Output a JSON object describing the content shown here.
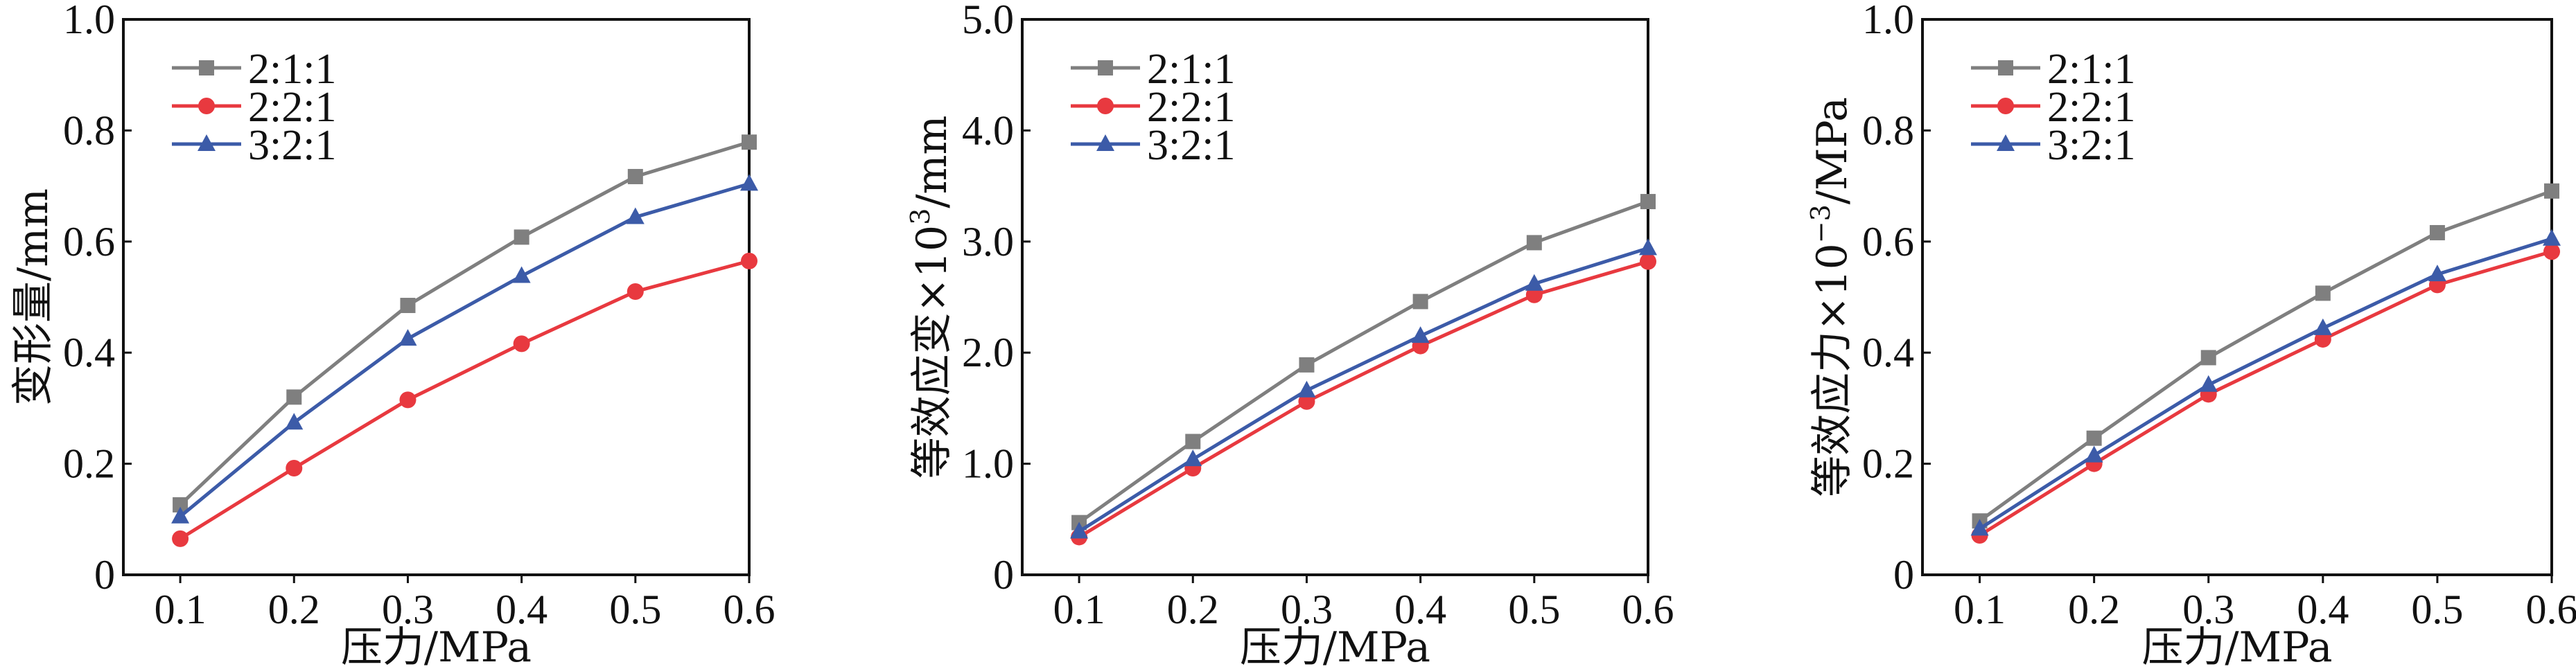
{
  "chart_data": [
    {
      "type": "line",
      "title": "",
      "xlabel": "压力/MPa",
      "ylabel": "变形量/mm",
      "ylabel_sup": "",
      "x": [
        0.1,
        0.2,
        0.3,
        0.4,
        0.5,
        0.6
      ],
      "xticks": [
        "0.1",
        "0.2",
        "0.3",
        "0.4",
        "0.5",
        "0.6"
      ],
      "xlim": [
        0.05,
        0.6
      ],
      "ylim": [
        0,
        1.0
      ],
      "yticks": [
        0,
        0.2,
        0.4,
        0.6,
        0.8,
        1.0
      ],
      "ytick_labels": [
        "0",
        "0.2",
        "0.4",
        "0.6",
        "0.8",
        "1.0"
      ],
      "grid": false,
      "legend_position": "top-left",
      "series": [
        {
          "name": "2:1:1",
          "color": "#7f7f7f",
          "marker": "square",
          "values": [
            0.126,
            0.32,
            0.485,
            0.608,
            0.717,
            0.779
          ]
        },
        {
          "name": "2:2:1",
          "color": "#e8393f",
          "marker": "circle",
          "values": [
            0.065,
            0.192,
            0.315,
            0.416,
            0.51,
            0.565
          ]
        },
        {
          "name": "3:2:1",
          "color": "#3c5ba8",
          "marker": "triangle",
          "values": [
            0.105,
            0.274,
            0.425,
            0.538,
            0.644,
            0.704
          ]
        }
      ]
    },
    {
      "type": "line",
      "title": "",
      "xlabel": "压力/MPa",
      "ylabel": "等效应变×10",
      "ylabel_sup": "3",
      "ylabel_unit": "/mm",
      "x": [
        0.1,
        0.2,
        0.3,
        0.4,
        0.5,
        0.6
      ],
      "xticks": [
        "0.1",
        "0.2",
        "0.3",
        "0.4",
        "0.5",
        "0.6"
      ],
      "xlim": [
        0.05,
        0.6
      ],
      "ylim": [
        0,
        5.0
      ],
      "yticks": [
        0,
        1,
        2,
        3,
        4,
        5
      ],
      "ytick_labels": [
        "0",
        "1.0",
        "2.0",
        "3.0",
        "4.0",
        "5.0"
      ],
      "grid": false,
      "legend_position": "top-left",
      "series": [
        {
          "name": "2:1:1",
          "color": "#7f7f7f",
          "marker": "square",
          "values": [
            0.47,
            1.2,
            1.89,
            2.46,
            2.99,
            3.36
          ]
        },
        {
          "name": "2:2:1",
          "color": "#e8393f",
          "marker": "circle",
          "values": [
            0.34,
            0.96,
            1.56,
            2.06,
            2.52,
            2.82
          ]
        },
        {
          "name": "3:2:1",
          "color": "#3c5ba8",
          "marker": "triangle",
          "values": [
            0.39,
            1.04,
            1.66,
            2.15,
            2.62,
            2.94
          ]
        }
      ]
    },
    {
      "type": "line",
      "title": "",
      "xlabel": "压力/MPa",
      "ylabel": "等效应力×10",
      "ylabel_sup": "−3",
      "ylabel_unit": "/MPa",
      "x": [
        0.1,
        0.2,
        0.3,
        0.4,
        0.5,
        0.6
      ],
      "xticks": [
        "0.1",
        "0.2",
        "0.3",
        "0.4",
        "0.5",
        "0.6"
      ],
      "xlim": [
        0.05,
        0.6
      ],
      "ylim": [
        0,
        1.0
      ],
      "yticks": [
        0,
        0.2,
        0.4,
        0.6,
        0.8,
        1.0
      ],
      "ytick_labels": [
        "0",
        "0.2",
        "0.4",
        "0.6",
        "0.8",
        "1.0"
      ],
      "grid": false,
      "legend_position": "top-left",
      "series": [
        {
          "name": "2:1:1",
          "color": "#7f7f7f",
          "marker": "square",
          "values": [
            0.097,
            0.246,
            0.391,
            0.507,
            0.616,
            0.691
          ]
        },
        {
          "name": "2:2:1",
          "color": "#e8393f",
          "marker": "circle",
          "values": [
            0.071,
            0.2,
            0.325,
            0.424,
            0.522,
            0.582
          ]
        },
        {
          "name": "3:2:1",
          "color": "#3c5ba8",
          "marker": "triangle",
          "values": [
            0.083,
            0.215,
            0.342,
            0.444,
            0.541,
            0.605
          ]
        }
      ]
    }
  ]
}
